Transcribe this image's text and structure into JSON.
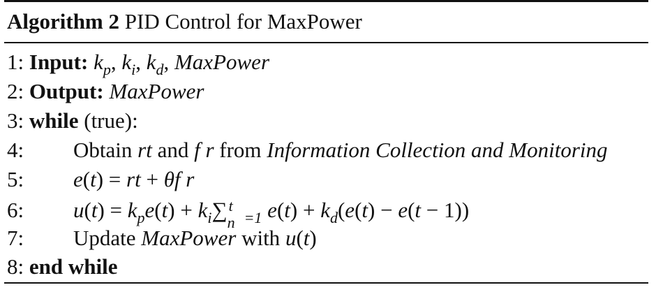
{
  "caption": {
    "label": "Algorithm 2",
    "title": "PID Control for MaxPower"
  },
  "lines": [
    {
      "num": "1:",
      "keyword": "Input:",
      "rest": "kp, ki, kd, MaxPower"
    },
    {
      "num": "2:",
      "keyword": "Output:",
      "rest": "MaxPower"
    },
    {
      "num": "3:",
      "keyword": "while",
      "rest": "(true):"
    },
    {
      "num": "4:",
      "text_a": "Obtain",
      "var_rt": "rt",
      "text_b": "and",
      "var_fr": "f r",
      "text_c": "from",
      "source": "Information Collection and Monitoring"
    },
    {
      "num": "5:",
      "formula": "e(t) = rt + θf r"
    },
    {
      "num": "6:",
      "formula": "u(t) = kpe(t) + ki∑ n=1 t e(t) + kd(e(t) − e(t − 1))"
    },
    {
      "num": "7:",
      "text_a": "Update",
      "var": "MaxPower",
      "text_b": "with",
      "formula": "u(t)"
    },
    {
      "num": "8:",
      "keyword": "end while"
    }
  ]
}
